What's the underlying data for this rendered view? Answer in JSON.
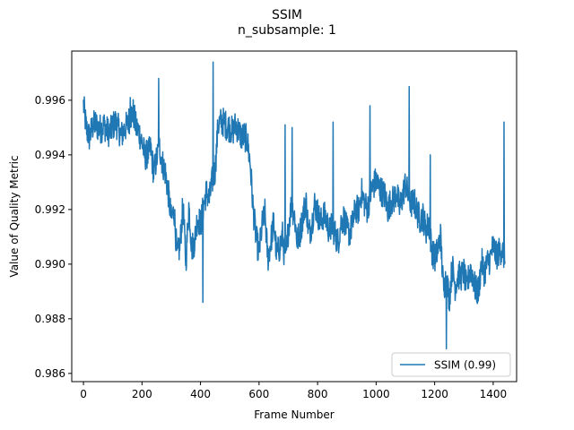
{
  "chart_data": {
    "type": "line",
    "title": "SSIM",
    "subtitle": "n_subsample: 1",
    "xlabel": "Frame Number",
    "ylabel": "Value of Quality Metric",
    "xlim": [
      -40,
      1480
    ],
    "ylim": [
      0.9857,
      0.9978
    ],
    "xticks": [
      0,
      200,
      400,
      600,
      800,
      1000,
      1200,
      1400
    ],
    "yticks": [
      0.986,
      0.988,
      0.99,
      0.992,
      0.994,
      0.996
    ],
    "ytick_labels": [
      "0.986",
      "0.988",
      "0.990",
      "0.992",
      "0.994",
      "0.996"
    ],
    "grid": false,
    "legend_position": "lower-right",
    "series": [
      {
        "name": "SSIM (0.99)",
        "color": "#1f77b4",
        "x_start": 0,
        "x_step": 10,
        "values": [
          0.99585,
          0.99495,
          0.99465,
          0.995,
          0.99515,
          0.995,
          0.99495,
          0.9951,
          0.9949,
          0.9948,
          0.99505,
          0.9952,
          0.99495,
          0.9947,
          0.99495,
          0.9951,
          0.9954,
          0.99555,
          0.995,
          0.99485,
          0.99445,
          0.99395,
          0.99405,
          0.9942,
          0.99335,
          0.99385,
          0.9943,
          0.9937,
          0.99335,
          0.9926,
          0.99165,
          0.99195,
          0.99025,
          0.9907,
          0.99215,
          0.99005,
          0.99215,
          0.9906,
          0.99085,
          0.99175,
          0.99145,
          0.9921,
          0.99265,
          0.99235,
          0.99305,
          0.99345,
          0.9951,
          0.9952,
          0.9952,
          0.99505,
          0.995,
          0.99485,
          0.9951,
          0.9949,
          0.99465,
          0.9947,
          0.9945,
          0.99365,
          0.992,
          0.99095,
          0.9904,
          0.9914,
          0.99185,
          0.9902,
          0.9908,
          0.99155,
          0.99035,
          0.9906,
          0.99105,
          0.98995,
          0.9913,
          0.99215,
          0.99185,
          0.99085,
          0.99115,
          0.99175,
          0.99235,
          0.9911,
          0.99145,
          0.9922,
          0.9919,
          0.9915,
          0.9918,
          0.99165,
          0.9912,
          0.9914,
          0.9911,
          0.9908,
          0.9915,
          0.9917,
          0.99125,
          0.99115,
          0.9915,
          0.99205,
          0.99195,
          0.99265,
          0.99225,
          0.992,
          0.99255,
          0.99285,
          0.99305,
          0.9928,
          0.99265,
          0.9925,
          0.992,
          0.9923,
          0.99235,
          0.99265,
          0.99205,
          0.99245,
          0.99295,
          0.9925,
          0.9922,
          0.9923,
          0.9919,
          0.99165,
          0.99175,
          0.99125,
          0.9915,
          0.99055,
          0.9902,
          0.9905,
          0.99105,
          0.9891,
          0.98955,
          0.9887,
          0.98995,
          0.9892,
          0.9896,
          0.98955,
          0.9897,
          0.98905,
          0.98985,
          0.9896,
          0.98905,
          0.989,
          0.9901,
          0.9897,
          0.99005,
          0.9902,
          0.9907,
          0.9903,
          0.99045,
          0.99055,
          0.99015
        ]
      }
    ],
    "peaks": [
      {
        "x": 160,
        "y": 0.9961
      },
      {
        "x": 257,
        "y": 0.9968
      },
      {
        "x": 408,
        "y": 0.9886
      },
      {
        "x": 443,
        "y": 0.9974
      },
      {
        "x": 689,
        "y": 0.9951
      },
      {
        "x": 713,
        "y": 0.995
      },
      {
        "x": 853,
        "y": 0.9952
      },
      {
        "x": 979,
        "y": 0.9958
      },
      {
        "x": 1113,
        "y": 0.9965
      },
      {
        "x": 1185,
        "y": 0.994
      },
      {
        "x": 1240,
        "y": 0.9869
      },
      {
        "x": 1437,
        "y": 0.9952
      }
    ],
    "noise_amplitude": 0.00055
  }
}
